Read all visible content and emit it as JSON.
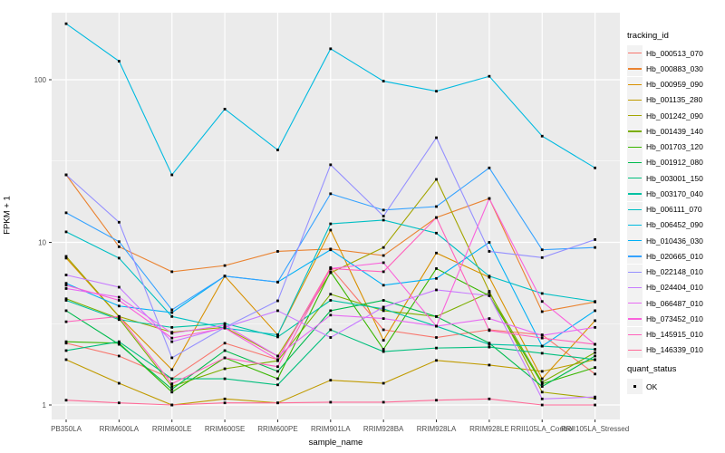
{
  "chart_data": {
    "type": "line",
    "title": "",
    "xlabel": "sample_name",
    "ylabel": "FPKM + 1",
    "y_scale": "log10",
    "y_ticks": [
      "1",
      "10",
      "100"
    ],
    "y_tick_values": [
      1,
      10,
      100
    ],
    "y_minor_values": [
      3.1623,
      31.623
    ],
    "ylim": [
      0.82,
      255
    ],
    "grid": true,
    "panel_bg": "#EBEBEB",
    "grid_color": "#FFFFFF",
    "tick_label_color": "#4D4D4D",
    "point_color": "#000000",
    "legend_title": "tracking_id",
    "legend2_title": "quant_status",
    "legend2_items": [
      {
        "label": "OK",
        "marker": "black-square"
      }
    ],
    "categories": [
      "PB350LA",
      "RRIM600LA",
      "RRIM600LE",
      "RRIM600SE",
      "RRIM600PE",
      "RRIM901LA",
      "RRIM928BA",
      "RRIM928LA",
      "RRIM928LE",
      "RRII105LA_Control",
      "RRII105LA_Stressed"
    ],
    "series": [
      {
        "name": "Hb_000513_070",
        "color": "#F8766D",
        "values": [
          2.4,
          2.0,
          1.45,
          2.4,
          1.9,
          7.0,
          2.9,
          2.6,
          2.9,
          2.7,
          1.55
        ]
      },
      {
        "name": "Hb_000883_030",
        "color": "#EA8331",
        "values": [
          26,
          9.4,
          6.6,
          7.2,
          8.8,
          9.1,
          8.3,
          14.2,
          18.6,
          3.75,
          4.3
        ]
      },
      {
        "name": "Hb_000959_090",
        "color": "#D89000",
        "values": [
          8.0,
          3.5,
          1.65,
          6.2,
          2.7,
          11.9,
          2.5,
          8.6,
          6.1,
          1.45,
          3.3
        ]
      },
      {
        "name": "Hb_001135_280",
        "color": "#C09B00",
        "values": [
          1.9,
          1.36,
          1.0,
          1.09,
          1.03,
          1.42,
          1.36,
          1.88,
          1.76,
          1.61,
          1.9
        ]
      },
      {
        "name": "Hb_001242_090",
        "color": "#A3A500",
        "values": [
          8.2,
          3.5,
          2.8,
          3.0,
          2.0,
          6.5,
          9.3,
          24.4,
          5.0,
          1.2,
          1.1
        ]
      },
      {
        "name": "Hb_001439_140",
        "color": "#7CAE00",
        "values": [
          4.5,
          3.4,
          1.3,
          1.67,
          1.87,
          4.8,
          3.8,
          3.5,
          4.9,
          1.38,
          2.1
        ]
      },
      {
        "name": "Hb_001703_120",
        "color": "#39B600",
        "values": [
          2.45,
          2.4,
          1.2,
          1.95,
          1.45,
          6.6,
          2.2,
          6.9,
          4.7,
          1.35,
          1.7
        ]
      },
      {
        "name": "Hb_001912_080",
        "color": "#00BB4E",
        "values": [
          3.8,
          2.36,
          1.25,
          2.16,
          1.61,
          3.8,
          4.4,
          3.5,
          2.4,
          1.3,
          2.0
        ]
      },
      {
        "name": "Hb_003001_150",
        "color": "#00BF7D",
        "values": [
          2.16,
          2.45,
          1.45,
          1.45,
          1.33,
          2.9,
          2.13,
          2.24,
          2.27,
          2.08,
          1.9
        ]
      },
      {
        "name": "Hb_003170_040",
        "color": "#00C1A3",
        "values": [
          4.4,
          3.35,
          3.0,
          3.17,
          2.62,
          4.4,
          3.9,
          3.05,
          2.36,
          2.3,
          2.2
        ]
      },
      {
        "name": "Hb_006111_070",
        "color": "#00BFC4",
        "values": [
          11.6,
          8.0,
          3.5,
          2.97,
          2.7,
          13.0,
          13.7,
          11.4,
          6.2,
          4.85,
          4.33
        ]
      },
      {
        "name": "Hb_006452_090",
        "color": "#00BAE0",
        "values": [
          221,
          130,
          26,
          66,
          37,
          155,
          98,
          85,
          105,
          45,
          28.7
        ]
      },
      {
        "name": "Hb_010436_030",
        "color": "#00B0F6",
        "values": [
          5.6,
          4.06,
          3.7,
          6.2,
          5.7,
          9.0,
          5.45,
          6.0,
          10.0,
          2.3,
          3.8
        ]
      },
      {
        "name": "Hb_020665_010",
        "color": "#35A2FF",
        "values": [
          15.2,
          10.1,
          3.85,
          6.2,
          5.7,
          19.9,
          15.8,
          16.6,
          28.7,
          9.0,
          9.3
        ]
      },
      {
        "name": "Hb_022148_010",
        "color": "#9590FF",
        "values": [
          26,
          13.3,
          1.95,
          3.0,
          4.37,
          30,
          14.5,
          44,
          8.8,
          8.06,
          10.4
        ]
      },
      {
        "name": "Hb_024404_010",
        "color": "#C77CFF",
        "values": [
          6.3,
          5.3,
          2.45,
          3.0,
          3.8,
          2.6,
          4.0,
          5.1,
          4.7,
          1.09,
          1.12
        ]
      },
      {
        "name": "Hb_066487_010",
        "color": "#E76BF3",
        "values": [
          5.2,
          4.6,
          2.76,
          3.1,
          2.0,
          3.57,
          3.4,
          3.05,
          3.4,
          2.68,
          3.0
        ]
      },
      {
        "name": "Hb_073452_010",
        "color": "#FA62DB",
        "values": [
          5.45,
          4.4,
          2.58,
          2.97,
          1.9,
          6.9,
          7.5,
          3.05,
          18.6,
          4.33,
          2.36
        ]
      },
      {
        "name": "Hb_145915_010",
        "color": "#FF62BC",
        "values": [
          3.25,
          3.5,
          1.35,
          1.95,
          1.72,
          6.9,
          6.6,
          14.2,
          2.87,
          2.58,
          2.36
        ]
      },
      {
        "name": "Hb_146339_010",
        "color": "#FF6A98",
        "values": [
          1.07,
          1.03,
          1.0,
          1.03,
          1.03,
          1.04,
          1.04,
          1.07,
          1.09,
          1.0,
          1.0
        ]
      }
    ]
  }
}
